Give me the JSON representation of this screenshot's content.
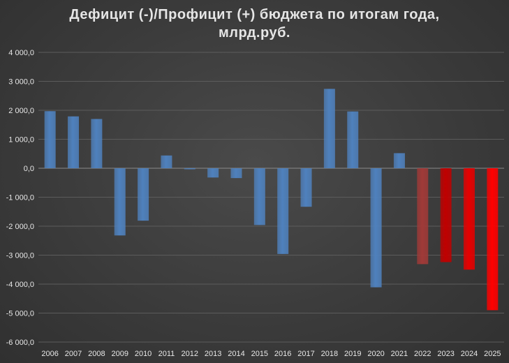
{
  "chart_data": {
    "type": "bar",
    "title_line1": "Дефицит (-)/Профицит (+) бюджета по итогам года,",
    "title_line2": "млрд.руб.",
    "xlabel": "",
    "ylabel": "",
    "ylim": [
      -6000,
      4000
    ],
    "yticks": [
      4000,
      3000,
      2000,
      1000,
      0,
      -1000,
      -2000,
      -3000,
      -4000,
      -5000,
      -6000
    ],
    "ytick_labels": [
      "4 000,0",
      "3 000,0",
      "2 000,0",
      "1 000,0",
      "0,0",
      "-1 000,0",
      "-2 000,0",
      "-3 000,0",
      "-4 000,0",
      "-5 000,0",
      "-6 000,0"
    ],
    "grid": true,
    "categories": [
      "2006",
      "2007",
      "2008",
      "2009",
      "2010",
      "2011",
      "2012",
      "2013",
      "2014",
      "2015",
      "2016",
      "2017",
      "2018",
      "2019",
      "2020",
      "2021",
      "2022",
      "2023",
      "2024",
      "2025"
    ],
    "values": [
      1970,
      1790,
      1700,
      -2320,
      -1810,
      440,
      -30,
      -320,
      -340,
      -1960,
      -2960,
      -1330,
      2740,
      1960,
      -4110,
      520,
      -3310,
      -3240,
      -3500,
      -4900
    ],
    "bar_colors": [
      "#4f81bd",
      "#4f81bd",
      "#4f81bd",
      "#4f81bd",
      "#4f81bd",
      "#4f81bd",
      "#4f81bd",
      "#4f81bd",
      "#4f81bd",
      "#4f81bd",
      "#4f81bd",
      "#4f81bd",
      "#4f81bd",
      "#4f81bd",
      "#4f81bd",
      "#4f81bd",
      "#a03a38",
      "#c00000",
      "#e60000",
      "#ff0000"
    ]
  }
}
